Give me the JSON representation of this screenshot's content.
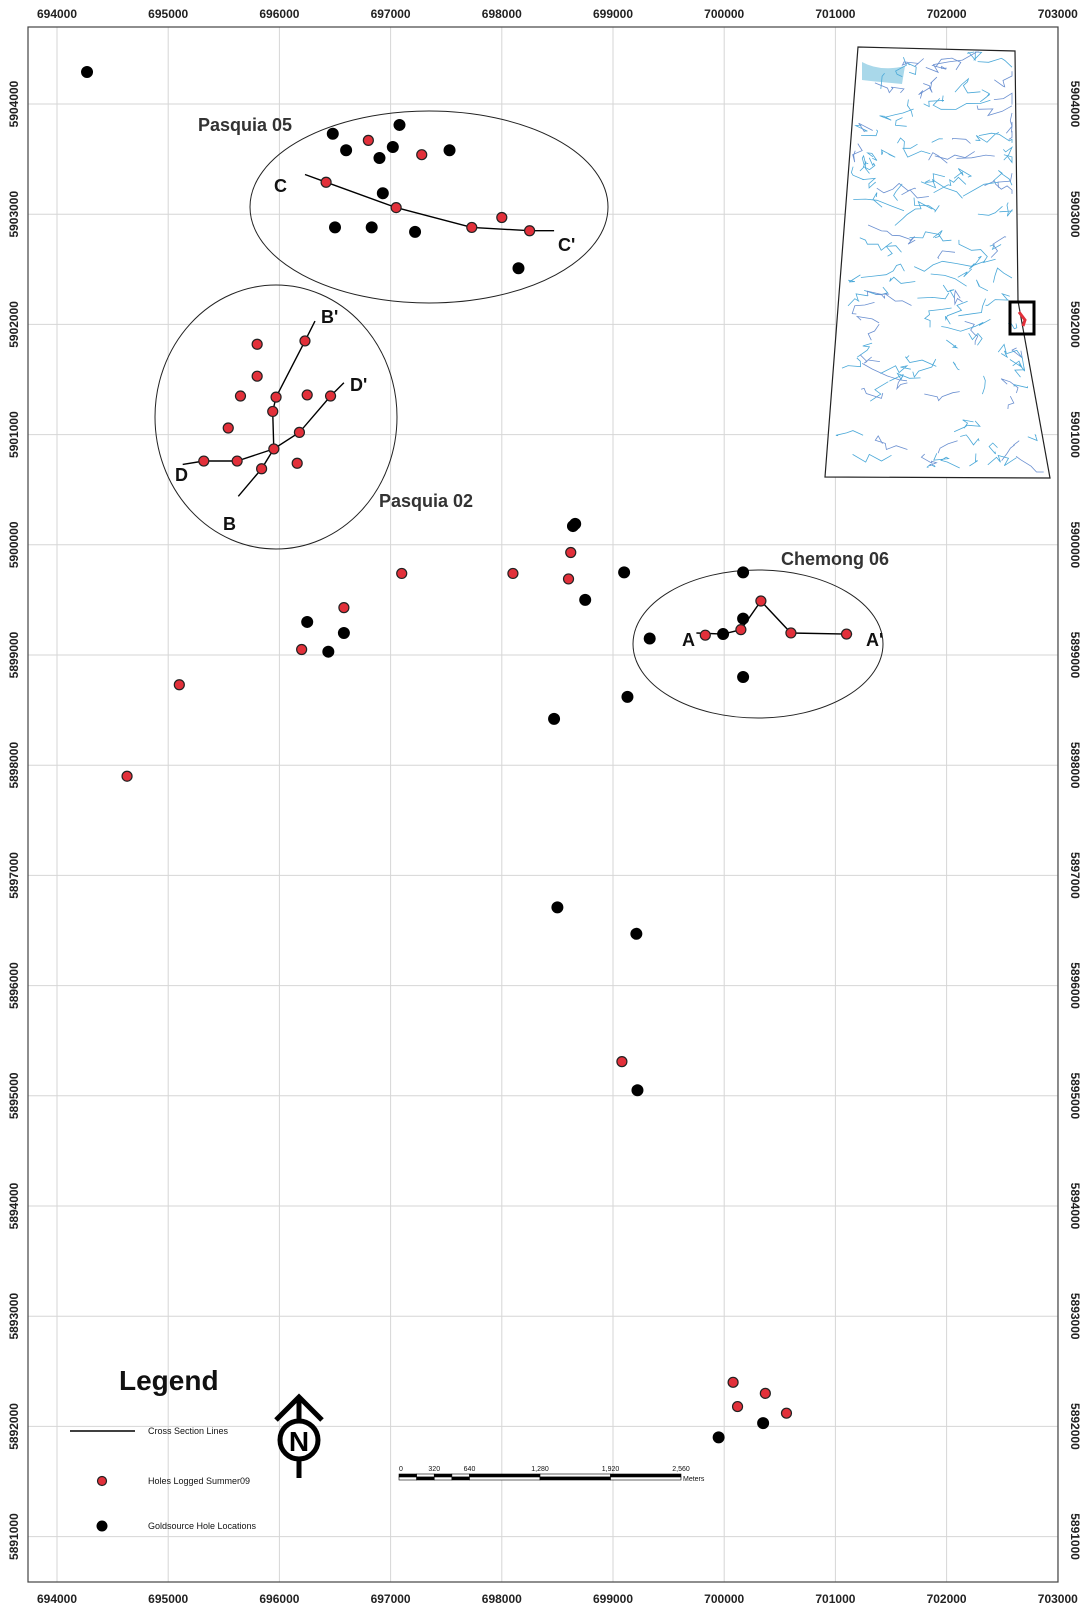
{
  "map": {
    "x_ticks": [
      "694000",
      "695000",
      "696000",
      "697000",
      "698000",
      "699000",
      "700000",
      "701000",
      "702000",
      "703000"
    ],
    "y_ticks": [
      "5904000",
      "5903000",
      "5902000",
      "5901000",
      "5900000",
      "5899000",
      "5898000",
      "5897000",
      "5896000",
      "5895000",
      "5894000",
      "5893000",
      "5892000",
      "5891000"
    ],
    "areas": [
      {
        "name": "Pasquia 05"
      },
      {
        "name": "Pasquia 02"
      },
      {
        "name": "Chemong 06"
      }
    ],
    "section_labels": {
      "A": "A",
      "A2": "A'",
      "B": "B",
      "B2": "B'",
      "C": "C",
      "C2": "C'",
      "D": "D",
      "D2": "D'"
    },
    "holes_logged": [
      [
        696800,
        5903670
      ],
      [
        697280,
        5903540
      ],
      [
        696420,
        5903290
      ],
      [
        697050,
        5903060
      ],
      [
        697730,
        5902880
      ],
      [
        698000,
        5902970
      ],
      [
        698250,
        5902850
      ],
      [
        695800,
        5901820
      ],
      [
        696230,
        5901850
      ],
      [
        695800,
        5901530
      ],
      [
        695650,
        5901350
      ],
      [
        695970,
        5901340
      ],
      [
        696250,
        5901360
      ],
      [
        696460,
        5901350
      ],
      [
        695940,
        5901210
      ],
      [
        695540,
        5901060
      ],
      [
        696180,
        5901020
      ],
      [
        695950,
        5900870
      ],
      [
        695320,
        5900760
      ],
      [
        695620,
        5900760
      ],
      [
        696160,
        5900740
      ],
      [
        695840,
        5900690
      ],
      [
        696580,
        5899430
      ],
      [
        696200,
        5899050
      ],
      [
        697100,
        5899740
      ],
      [
        698100,
        5899740
      ],
      [
        698620,
        5899930
      ],
      [
        698600,
        5899690
      ],
      [
        699830,
        5899180
      ],
      [
        700150,
        5899230
      ],
      [
        700330,
        5899490
      ],
      [
        700600,
        5899200
      ],
      [
        701100,
        5899190
      ],
      [
        695100,
        5898730
      ],
      [
        694630,
        5897900
      ],
      [
        699080,
        5895310
      ],
      [
        700080,
        5892400
      ],
      [
        700120,
        5892180
      ],
      [
        700370,
        5892300
      ],
      [
        700560,
        5892120
      ]
    ],
    "holes_goldsource": [
      [
        694270,
        5904290
      ],
      [
        696480,
        5903730
      ],
      [
        697080,
        5903810
      ],
      [
        696600,
        5903580
      ],
      [
        697020,
        5903610
      ],
      [
        696900,
        5903510
      ],
      [
        697530,
        5903580
      ],
      [
        696930,
        5903190
      ],
      [
        696500,
        5902880
      ],
      [
        696830,
        5902880
      ],
      [
        697220,
        5902840
      ],
      [
        698150,
        5902510
      ],
      [
        698660,
        5900190
      ],
      [
        698640,
        5900170
      ],
      [
        699100,
        5899750
      ],
      [
        700170,
        5899750
      ],
      [
        698750,
        5899500
      ],
      [
        700170,
        5899330
      ],
      [
        699990,
        5899190
      ],
      [
        696250,
        5899300
      ],
      [
        696580,
        5899200
      ],
      [
        696440,
        5899030
      ],
      [
        699330,
        5899150
      ],
      [
        699130,
        5898620
      ],
      [
        700170,
        5898800
      ],
      [
        698470,
        5898420
      ],
      [
        698500,
        5896710
      ],
      [
        699210,
        5896470
      ],
      [
        699220,
        5895050
      ],
      [
        699950,
        5891900
      ],
      [
        700350,
        5892030
      ]
    ],
    "lines": {
      "AA": [
        [
          699750,
          5899200
        ],
        [
          699990,
          5899190
        ],
        [
          700150,
          5899230
        ],
        [
          700330,
          5899490
        ],
        [
          700600,
          5899200
        ],
        [
          701100,
          5899190
        ],
        [
          701150,
          5899190
        ]
      ],
      "BB": [
        [
          695630,
          5900440
        ],
        [
          695840,
          5900690
        ],
        [
          695950,
          5900870
        ],
        [
          695940,
          5901210
        ],
        [
          695970,
          5901340
        ],
        [
          696230,
          5901850
        ],
        [
          696320,
          5902030
        ]
      ],
      "CC": [
        [
          696230,
          5903360
        ],
        [
          696420,
          5903290
        ],
        [
          697050,
          5903060
        ],
        [
          697730,
          5902880
        ],
        [
          698250,
          5902850
        ],
        [
          698470,
          5902850
        ]
      ],
      "DD": [
        [
          695130,
          5900730
        ],
        [
          695320,
          5900760
        ],
        [
          695620,
          5900760
        ],
        [
          695950,
          5900870
        ],
        [
          696180,
          5901020
        ],
        [
          696460,
          5901350
        ],
        [
          696580,
          5901470
        ]
      ]
    },
    "legend": {
      "title": "Legend",
      "items": [
        {
          "label": "Cross Section Lines"
        },
        {
          "label": "Holes Logged Summer09"
        },
        {
          "label": "Goldsource Hole Locations"
        }
      ]
    },
    "scale_bar": {
      "labels": [
        "0",
        "320",
        "640",
        "1,280",
        "1,920",
        "2,560"
      ],
      "unit": "Meters"
    },
    "north_arrow": "N",
    "colors": {
      "red_hole": "#e2303a",
      "black_hole": "#000000",
      "river": "#4aa8d8",
      "lake": "#a9d8ea"
    }
  }
}
